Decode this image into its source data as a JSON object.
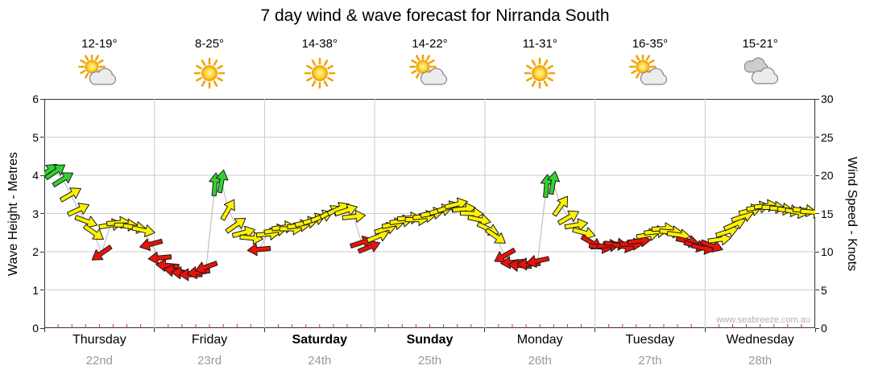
{
  "title": "7 day wind & wave forecast for Nirranda South",
  "watermark": "www.seabreeze.com.au",
  "axes": {
    "left_label": "Wave Height - Metres",
    "right_label": "Wind Speed - Knots",
    "left_ticks": [
      0,
      1,
      2,
      3,
      4,
      5,
      6
    ],
    "right_ticks": [
      0,
      5,
      10,
      15,
      20,
      25,
      30
    ]
  },
  "days": [
    {
      "name": "Thursday",
      "date": "22nd",
      "temp": "12-19°",
      "icon": "sun-cloud",
      "weekend": false
    },
    {
      "name": "Friday",
      "date": "23rd",
      "temp": "8-25°",
      "icon": "sun",
      "weekend": false
    },
    {
      "name": "Saturday",
      "date": "24th",
      "temp": "14-38°",
      "icon": "sun",
      "weekend": true
    },
    {
      "name": "Sunday",
      "date": "25th",
      "temp": "14-22°",
      "icon": "sun-cloud",
      "weekend": true
    },
    {
      "name": "Monday",
      "date": "26th",
      "temp": "11-31°",
      "icon": "sun",
      "weekend": false
    },
    {
      "name": "Tuesday",
      "date": "27th",
      "temp": "16-35°",
      "icon": "sun-cloud",
      "weekend": false
    },
    {
      "name": "Wednesday",
      "date": "28th",
      "temp": "15-21°",
      "icon": "cloud",
      "weekend": false
    }
  ],
  "chart_data": {
    "type": "scatter",
    "marker": "wind-direction-arrow",
    "title": "7 day wind & wave forecast for Nirranda South",
    "x_range_days": [
      0,
      7
    ],
    "x_day_labels": [
      "Thursday",
      "Friday",
      "Saturday",
      "Sunday",
      "Monday",
      "Tuesday",
      "Wednesday"
    ],
    "x_date_labels": [
      "22nd",
      "23rd",
      "24th",
      "25th",
      "26th",
      "27th",
      "28th"
    ],
    "y_left": {
      "label": "Wave Height - Metres",
      "range": [
        0,
        6
      ]
    },
    "y_right": {
      "label": "Wind Speed - Knots",
      "range": [
        0,
        30
      ]
    },
    "grid": true,
    "arrow_colors": {
      "g": "#2fd32f",
      "y": "#fff200",
      "r": "#e81309"
    },
    "point_format": [
      "time_days_from_thursday",
      "wind_speed_knots",
      "color_code",
      "arrow_rotation_deg_0_east_negative_up"
    ],
    "points": [
      [
        0.03,
        20.5,
        "g",
        -38
      ],
      [
        0.1,
        20.5,
        "g",
        -35
      ],
      [
        0.17,
        19.5,
        "g",
        -32
      ],
      [
        0.24,
        17.5,
        "y",
        -30
      ],
      [
        0.31,
        15.5,
        "y",
        -25
      ],
      [
        0.38,
        14.0,
        "y",
        20
      ],
      [
        0.45,
        12.5,
        "y",
        35
      ],
      [
        0.52,
        9.8,
        "r",
        145
      ],
      [
        0.6,
        13.5,
        "y",
        -10
      ],
      [
        0.67,
        13.8,
        "y",
        -5
      ],
      [
        0.74,
        13.5,
        "y",
        0
      ],
      [
        0.82,
        13.2,
        "y",
        8
      ],
      [
        0.9,
        12.8,
        "y",
        12
      ],
      [
        0.97,
        11.0,
        "r",
        165
      ],
      [
        1.05,
        9.2,
        "r",
        175
      ],
      [
        1.12,
        8.2,
        "r",
        185
      ],
      [
        1.19,
        7.5,
        "r",
        190
      ],
      [
        1.26,
        7.2,
        "r",
        185
      ],
      [
        1.33,
        7.0,
        "r",
        180
      ],
      [
        1.4,
        7.3,
        "r",
        172
      ],
      [
        1.47,
        8.0,
        "r",
        160
      ],
      [
        1.55,
        18.8,
        "g",
        -85
      ],
      [
        1.61,
        19.2,
        "g",
        -80
      ],
      [
        1.67,
        15.5,
        "y",
        -60
      ],
      [
        1.74,
        13.5,
        "y",
        -35
      ],
      [
        1.81,
        12.5,
        "y",
        -15
      ],
      [
        1.88,
        11.8,
        "y",
        5
      ],
      [
        1.95,
        10.3,
        "r",
        175
      ],
      [
        2.03,
        12.3,
        "y",
        -5
      ],
      [
        2.1,
        12.8,
        "y",
        -10
      ],
      [
        2.17,
        13.2,
        "y",
        -8
      ],
      [
        2.24,
        13.0,
        "y",
        0
      ],
      [
        2.31,
        13.4,
        "y",
        -6
      ],
      [
        2.38,
        13.8,
        "y",
        -12
      ],
      [
        2.45,
        14.2,
        "y",
        -18
      ],
      [
        2.52,
        14.6,
        "y",
        -22
      ],
      [
        2.6,
        15.2,
        "y",
        -28
      ],
      [
        2.67,
        15.6,
        "y",
        -25
      ],
      [
        2.74,
        15.4,
        "y",
        -18
      ],
      [
        2.81,
        14.6,
        "y",
        -6
      ],
      [
        2.88,
        11.2,
        "r",
        -18
      ],
      [
        2.95,
        10.6,
        "r",
        -22
      ],
      [
        3.03,
        12.0,
        "y",
        -22
      ],
      [
        3.1,
        13.0,
        "y",
        -18
      ],
      [
        3.17,
        13.6,
        "y",
        -12
      ],
      [
        3.24,
        14.0,
        "y",
        -8
      ],
      [
        3.31,
        14.4,
        "y",
        -4
      ],
      [
        3.38,
        14.2,
        "y",
        0
      ],
      [
        3.45,
        14.6,
        "y",
        -6
      ],
      [
        3.52,
        15.0,
        "y",
        -10
      ],
      [
        3.6,
        15.4,
        "y",
        -14
      ],
      [
        3.67,
        15.8,
        "y",
        -18
      ],
      [
        3.74,
        16.2,
        "y",
        -14
      ],
      [
        3.81,
        15.6,
        "y",
        -6
      ],
      [
        3.88,
        15.0,
        "y",
        2
      ],
      [
        3.95,
        14.2,
        "y",
        12
      ],
      [
        4.03,
        13.0,
        "y",
        25
      ],
      [
        4.1,
        12.0,
        "y",
        35
      ],
      [
        4.18,
        9.5,
        "r",
        150
      ],
      [
        4.25,
        8.6,
        "r",
        175
      ],
      [
        4.32,
        8.2,
        "r",
        185
      ],
      [
        4.4,
        8.4,
        "r",
        178
      ],
      [
        4.48,
        8.8,
        "r",
        168
      ],
      [
        4.56,
        18.6,
        "g",
        -85
      ],
      [
        4.62,
        19.0,
        "g",
        -80
      ],
      [
        4.69,
        16.0,
        "y",
        -55
      ],
      [
        4.76,
        14.5,
        "y",
        -30
      ],
      [
        4.83,
        13.5,
        "y",
        -10
      ],
      [
        4.9,
        12.5,
        "y",
        15
      ],
      [
        4.97,
        11.2,
        "r",
        30
      ],
      [
        5.05,
        10.6,
        "r",
        8
      ],
      [
        5.12,
        10.8,
        "r",
        -4
      ],
      [
        5.19,
        11.0,
        "r",
        4
      ],
      [
        5.26,
        10.7,
        "r",
        10
      ],
      [
        5.33,
        11.0,
        "r",
        0
      ],
      [
        5.4,
        11.4,
        "r",
        -6
      ],
      [
        5.48,
        12.2,
        "y",
        -10
      ],
      [
        5.55,
        12.6,
        "y",
        -6
      ],
      [
        5.62,
        13.0,
        "y",
        -2
      ],
      [
        5.69,
        12.6,
        "y",
        4
      ],
      [
        5.76,
        12.2,
        "y",
        8
      ],
      [
        5.84,
        11.4,
        "r",
        12
      ],
      [
        5.91,
        10.8,
        "r",
        16
      ],
      [
        5.98,
        10.5,
        "r",
        12
      ],
      [
        6.06,
        10.8,
        "r",
        20
      ],
      [
        6.13,
        11.6,
        "y",
        -8
      ],
      [
        6.2,
        12.6,
        "y",
        -18
      ],
      [
        6.27,
        13.6,
        "y",
        -24
      ],
      [
        6.34,
        14.6,
        "y",
        -20
      ],
      [
        6.41,
        15.4,
        "y",
        -15
      ],
      [
        6.48,
        15.8,
        "y",
        -10
      ],
      [
        6.55,
        16.0,
        "y",
        -6
      ],
      [
        6.62,
        15.8,
        "y",
        0
      ],
      [
        6.69,
        15.6,
        "y",
        5
      ],
      [
        6.76,
        15.4,
        "y",
        8
      ],
      [
        6.83,
        15.2,
        "y",
        10
      ],
      [
        6.9,
        15.4,
        "y",
        6
      ],
      [
        6.97,
        15.2,
        "y",
        4
      ]
    ]
  }
}
